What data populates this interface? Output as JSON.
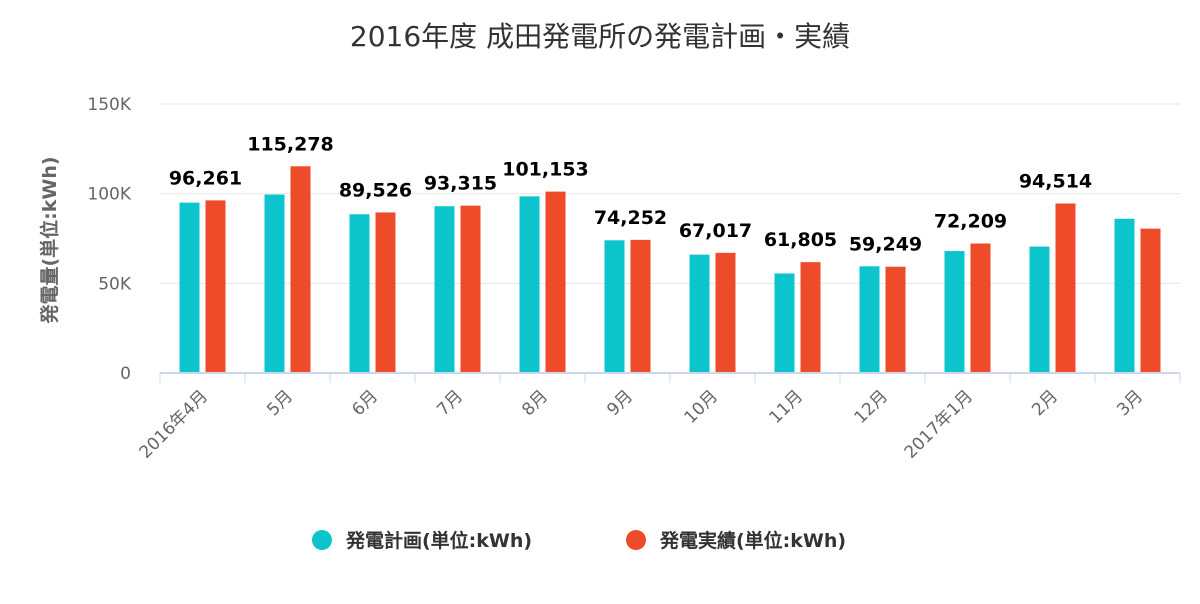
{
  "chart_data": {
    "type": "bar",
    "title": "2016年度 成田発電所の発電計画・実績",
    "ylabel": "発電量(単位:kWh)",
    "ylim": [
      0,
      150000
    ],
    "yticks": [
      0,
      50000,
      100000,
      150000
    ],
    "ytick_labels": [
      "0",
      "50K",
      "100K",
      "150K"
    ],
    "categories": [
      "2016年4月",
      "5月",
      "6月",
      "7月",
      "8月",
      "9月",
      "10月",
      "11月",
      "12月",
      "2017年1月",
      "2月",
      "3月"
    ],
    "series": [
      {
        "name": "発電計画(単位:kWh)",
        "color": "#0cc5cc",
        "values": [
          95000,
          99500,
          88500,
          93000,
          98500,
          74000,
          66000,
          55500,
          59500,
          68000,
          70500,
          86000
        ]
      },
      {
        "name": "発電実績(単位:kWh)",
        "color": "#ee4b2b",
        "values": [
          96261,
          115278,
          89526,
          93315,
          101153,
          74252,
          67017,
          61805,
          59249,
          72209,
          94514,
          80500
        ]
      }
    ],
    "data_labels": [
      "96,261",
      "115,278",
      "89,526",
      "93,315",
      "101,153",
      "74,252",
      "67,017",
      "61,805",
      "59,249",
      "72,209",
      "94,514",
      ""
    ],
    "grid": true,
    "legend_position": "bottom-center"
  }
}
